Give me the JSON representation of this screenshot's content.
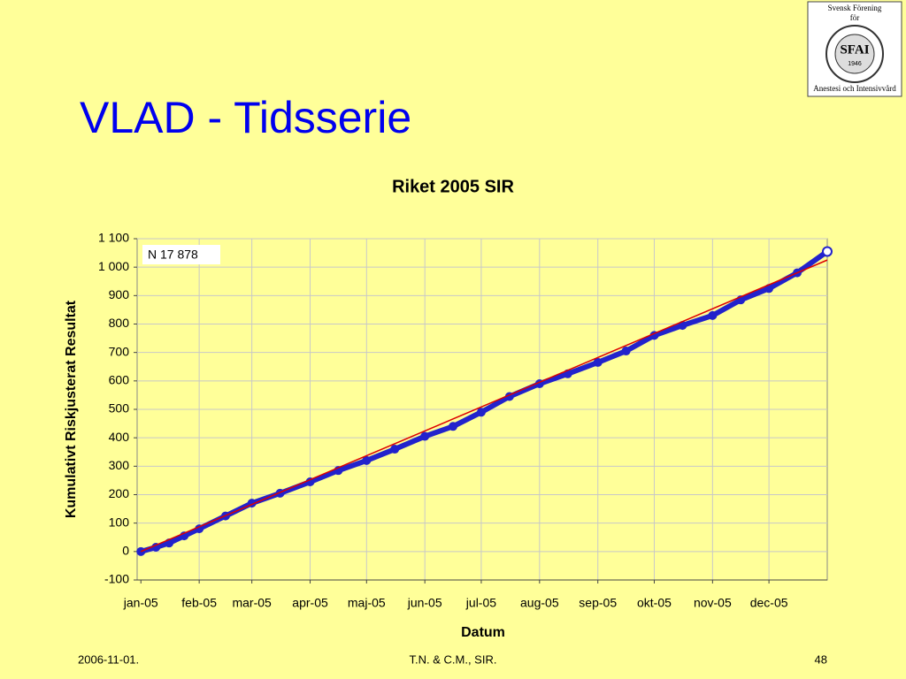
{
  "slide": {
    "title": "VLAD - Tidsserie",
    "logo": {
      "lines": [
        "Svensk Förening",
        "för"
      ],
      "emblem": "SFAI",
      "year": "1946",
      "bottom": "Anestesi och Intensivvård"
    },
    "footer": {
      "date": "2006-11-01.",
      "authors": "T.N. & C.M., SIR.",
      "page": "48"
    }
  },
  "chart_data": {
    "type": "line",
    "title": "Riket 2005 SIR",
    "x_label": "Datum",
    "y_label": "Kumulativt Riskjusterat Resultat",
    "annotation": "N  17 878",
    "xlim": [
      -2,
      365
    ],
    "xticks": [
      {
        "value": 0,
        "label": "jan-05"
      },
      {
        "value": 31,
        "label": "feb-05"
      },
      {
        "value": 59,
        "label": "mar-05"
      },
      {
        "value": 90,
        "label": "apr-05"
      },
      {
        "value": 120,
        "label": "maj-05"
      },
      {
        "value": 151,
        "label": "jun-05"
      },
      {
        "value": 181,
        "label": "jul-05"
      },
      {
        "value": 212,
        "label": "aug-05"
      },
      {
        "value": 243,
        "label": "sep-05"
      },
      {
        "value": 273,
        "label": "okt-05"
      },
      {
        "value": 304,
        "label": "nov-05"
      },
      {
        "value": 334,
        "label": "dec-05"
      }
    ],
    "ylim": [
      -100,
      1100
    ],
    "yticks": [
      -100,
      0,
      100,
      200,
      300,
      400,
      500,
      600,
      700,
      800,
      900,
      {
        "value": 1000,
        "label": "1 000"
      },
      {
        "value": 1100,
        "label": "1 100"
      }
    ],
    "grid": true,
    "series": [
      {
        "color": "#2222cc",
        "marker": true,
        "x": [
          0,
          8,
          15,
          23,
          31,
          45,
          59,
          74,
          90,
          105,
          120,
          135,
          151,
          166,
          181,
          196,
          212,
          227,
          243,
          258,
          273,
          288,
          304,
          319,
          334,
          349,
          365
        ],
        "values": [
          0,
          15,
          30,
          55,
          80,
          125,
          170,
          205,
          245,
          285,
          320,
          360,
          405,
          440,
          490,
          545,
          590,
          625,
          665,
          705,
          760,
          795,
          830,
          885,
          925,
          980,
          1055
        ]
      },
      {
        "color": "#dd0000",
        "marker": false,
        "x": [
          0,
          365
        ],
        "values": [
          0,
          1025
        ]
      }
    ]
  }
}
